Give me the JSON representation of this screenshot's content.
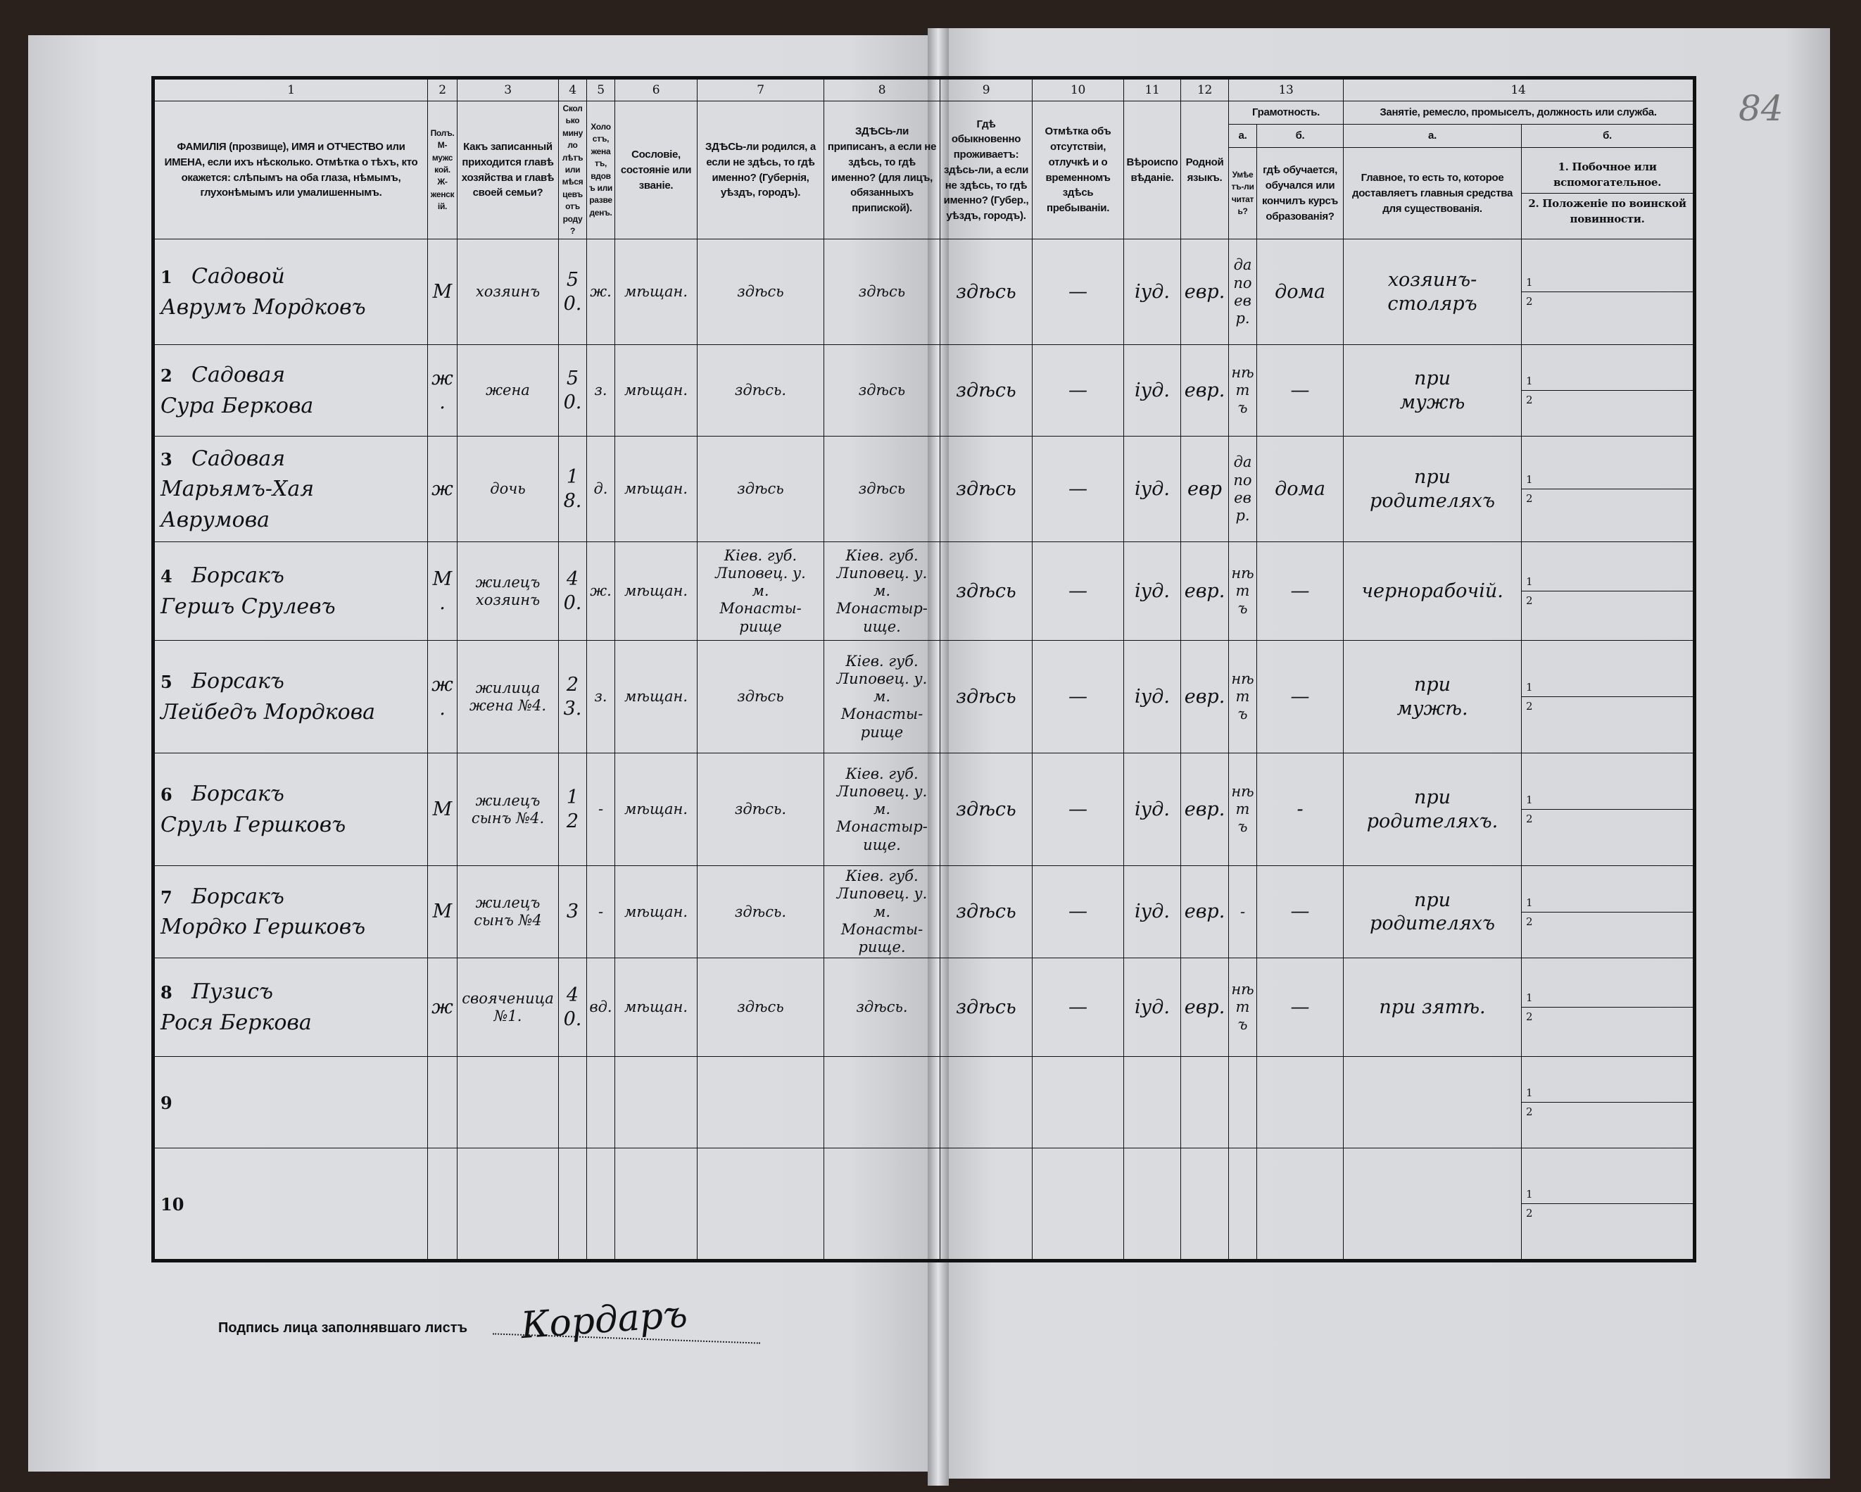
{
  "page_number": "84",
  "header": {
    "columns": [
      {
        "num": "1",
        "label": "ФАМИЛІЯ (прозвище), ИМЯ и ОТЧЕСТВО или ИМЕНА, если ихъ нѣсколько. Отмѣтка о тѣхъ, кто окажется: слѣпымъ на оба глаза, нѣмымъ, глухонѣмымъ или умалишеннымъ."
      },
      {
        "num": "2",
        "label": "Полъ. М-мужской. Ж-женскій."
      },
      {
        "num": "3",
        "label": "Какъ записанный приходится главѣ хозяйства и главѣ своей семьи?"
      },
      {
        "num": "4",
        "label": "Сколько минуло лѣтъ или мѣсяцевъ отъ роду?"
      },
      {
        "num": "5",
        "label": "Холостъ, женатъ, вдовъ или разведенъ."
      },
      {
        "num": "6",
        "label": "Сословіе, состояніе или званіе."
      },
      {
        "num": "7",
        "label": "ЗДѢСЬ-ли родился, а если не здѣсь, то гдѣ именно? (Губернія, уѣздъ, городъ)."
      },
      {
        "num": "8",
        "label": "ЗДѢСЬ-ли приписанъ, а если не здѣсь, то гдѣ именно? (для лицъ, обязанныхъ припиской)."
      },
      {
        "num": "9",
        "label": "Гдѣ обыкновенно проживаетъ: здѣсь-ли, а если не здѣсь, то гдѣ именно? (Губер., уѣздъ, городъ)."
      },
      {
        "num": "10",
        "label": "Отмѣтка объ отсутствіи, отлучкѣ и о временномъ здѣсь пребываніи."
      },
      {
        "num": "11",
        "label": "Вѣроисповѣданіе."
      },
      {
        "num": "12",
        "label": "Родной языкъ."
      }
    ],
    "col13": {
      "num": "13",
      "label": "Грамотность.",
      "a": "а.",
      "a_label": "Умѣетъ-ли читать?",
      "b": "б.",
      "b_label": "гдѣ обучается, обучался или кончилъ курсъ образованія?"
    },
    "col14": {
      "num": "14",
      "label": "Занятіе, ремесло, промыселъ, должность или служба.",
      "a": "а.",
      "a_label": "Главное, то есть то, которое доставляетъ главныя средства для существованія.",
      "b": "б.",
      "b1": "1. Побочное или вспомогательное.",
      "b2": "2. Положеніе по воинской повинности."
    }
  },
  "rows": [
    {
      "n": "1",
      "name": "Садовой\nАврумъ Мордковъ",
      "sex": "М",
      "relation": "хозяинъ",
      "age": "50.",
      "marital": "ж.",
      "estate": "мѣщан.",
      "born": "здѣсь",
      "registered": "здѣсь",
      "resides": "здѣсь",
      "absence": "—",
      "religion": "іуд.",
      "language": "евр.",
      "literate": "да\nпо\nевр.",
      "education": "дома",
      "occupation": "хозяинъ-столяръ",
      "sub1": "1",
      "sub2": "2"
    },
    {
      "n": "2",
      "name": "Садовая\nСура Беркова",
      "sex": "ж.",
      "relation": "жена",
      "age": "50.",
      "marital": "з.",
      "estate": "мѣщан.",
      "born": "здѣсь.",
      "registered": "здѣсь",
      "resides": "здѣсь",
      "absence": "—",
      "religion": "іуд.",
      "language": "евр.",
      "literate": "нѣтъ",
      "education": "—",
      "occupation": "при\nмужѣ",
      "sub1": "1",
      "sub2": "2"
    },
    {
      "n": "3",
      "name": "Садовая\nМарьямъ-Хая\nАврумова",
      "sex": "ж",
      "relation": "дочь",
      "age": "18.",
      "marital": "д.",
      "estate": "мѣщан.",
      "born": "здѣсь",
      "registered": "здѣсь",
      "resides": "здѣсь",
      "absence": "—",
      "religion": "іуд.",
      "language": "евр",
      "literate": "да\nпо\nевр.",
      "education": "дома",
      "occupation": "при\nродителяхъ",
      "sub1": "1",
      "sub2": "2"
    },
    {
      "n": "4",
      "name": "Борсакъ\nГершъ Срулевъ",
      "sex": "М.",
      "relation": "жилецъ\nхозяинъ",
      "age": "40.",
      "marital": "ж.",
      "estate": "мѣщан.",
      "born": "Кіев. губ.\nЛиповец. у.\nм.\nМонасты-\nрище",
      "registered": "Кіев. губ.\nЛиповец. у.\nм.\nМонастыр-\nище.",
      "resides": "здѣсь",
      "absence": "—",
      "religion": "іуд.",
      "language": "евр.",
      "literate": "нѣтъ",
      "education": "—",
      "occupation": "чернорабочій.",
      "sub1": "1",
      "sub2": "2"
    },
    {
      "n": "5",
      "name": "Борсакъ\nЛейбедъ Мордкова",
      "sex": "ж.",
      "relation": "жилица\nжена №4.",
      "age": "23.",
      "marital": "з.",
      "estate": "мѣщан.",
      "born": "здѣсь",
      "registered": "Кіев. губ.\nЛиповец. у.\nм.\nМонасты-\nрище",
      "resides": "здѣсь",
      "absence": "—",
      "religion": "іуд.",
      "language": "евр.",
      "literate": "нѣтъ",
      "education": "—",
      "occupation": "при\nмужѣ.",
      "sub1": "1",
      "sub2": "2"
    },
    {
      "n": "6",
      "name": "Борсакъ\nСруль Гершковъ",
      "sex": "М",
      "relation": "жилецъ\nсынъ №4.",
      "age": "12",
      "marital": "-",
      "estate": "мѣщан.",
      "born": "здѣсь.",
      "registered": "Кіев. губ.\nЛиповец. у.\nм.\nМонастыр-\nище.",
      "resides": "здѣсь",
      "absence": "—",
      "religion": "іуд.",
      "language": "евр.",
      "literate": "нѣтъ",
      "education": "-",
      "occupation": "при\nродителяхъ.",
      "sub1": "1",
      "sub2": "2"
    },
    {
      "n": "7",
      "name": "Борсакъ\nМордко Гершковъ",
      "sex": "М",
      "relation": "жилецъ\nсынъ №4",
      "age": "3",
      "marital": "-",
      "estate": "мѣщан.",
      "born": "здѣсь.",
      "registered": "Кіев. губ.\nЛиповец. у.\nм.\nМонасты-\nрище.",
      "resides": "здѣсь",
      "absence": "—",
      "religion": "іуд.",
      "language": "евр.",
      "literate": "-",
      "education": "—",
      "occupation": "при\nродителяхъ",
      "sub1": "1",
      "sub2": "2"
    },
    {
      "n": "8",
      "name": "Пузисъ\nРося Беркова",
      "sex": "ж",
      "relation": "свояченица\n№1.",
      "age": "40.",
      "marital": "вд.",
      "estate": "мѣщан.",
      "born": "здѣсь",
      "registered": "здѣсь.",
      "resides": "здѣсь",
      "absence": "—",
      "religion": "іуд.",
      "language": "евр.",
      "literate": "нѣтъ",
      "education": "—",
      "occupation": "при зятѣ.",
      "sub1": "1",
      "sub2": "2"
    },
    {
      "n": "9",
      "name": "",
      "sex": "",
      "relation": "",
      "age": "",
      "marital": "",
      "estate": "",
      "born": "",
      "registered": "",
      "resides": "",
      "absence": "",
      "religion": "",
      "language": "",
      "literate": "",
      "education": "",
      "occupation": "",
      "sub1": "1",
      "sub2": "2"
    },
    {
      "n": "10",
      "name": "",
      "sex": "",
      "relation": "",
      "age": "",
      "marital": "",
      "estate": "",
      "born": "",
      "registered": "",
      "resides": "",
      "absence": "",
      "religion": "",
      "language": "",
      "literate": "",
      "education": "",
      "occupation": "",
      "sub1": "1",
      "sub2": "2"
    }
  ],
  "footer": {
    "signature_label": "Подпись лица заполнявшаго листъ",
    "signature": "Кордаръ"
  }
}
